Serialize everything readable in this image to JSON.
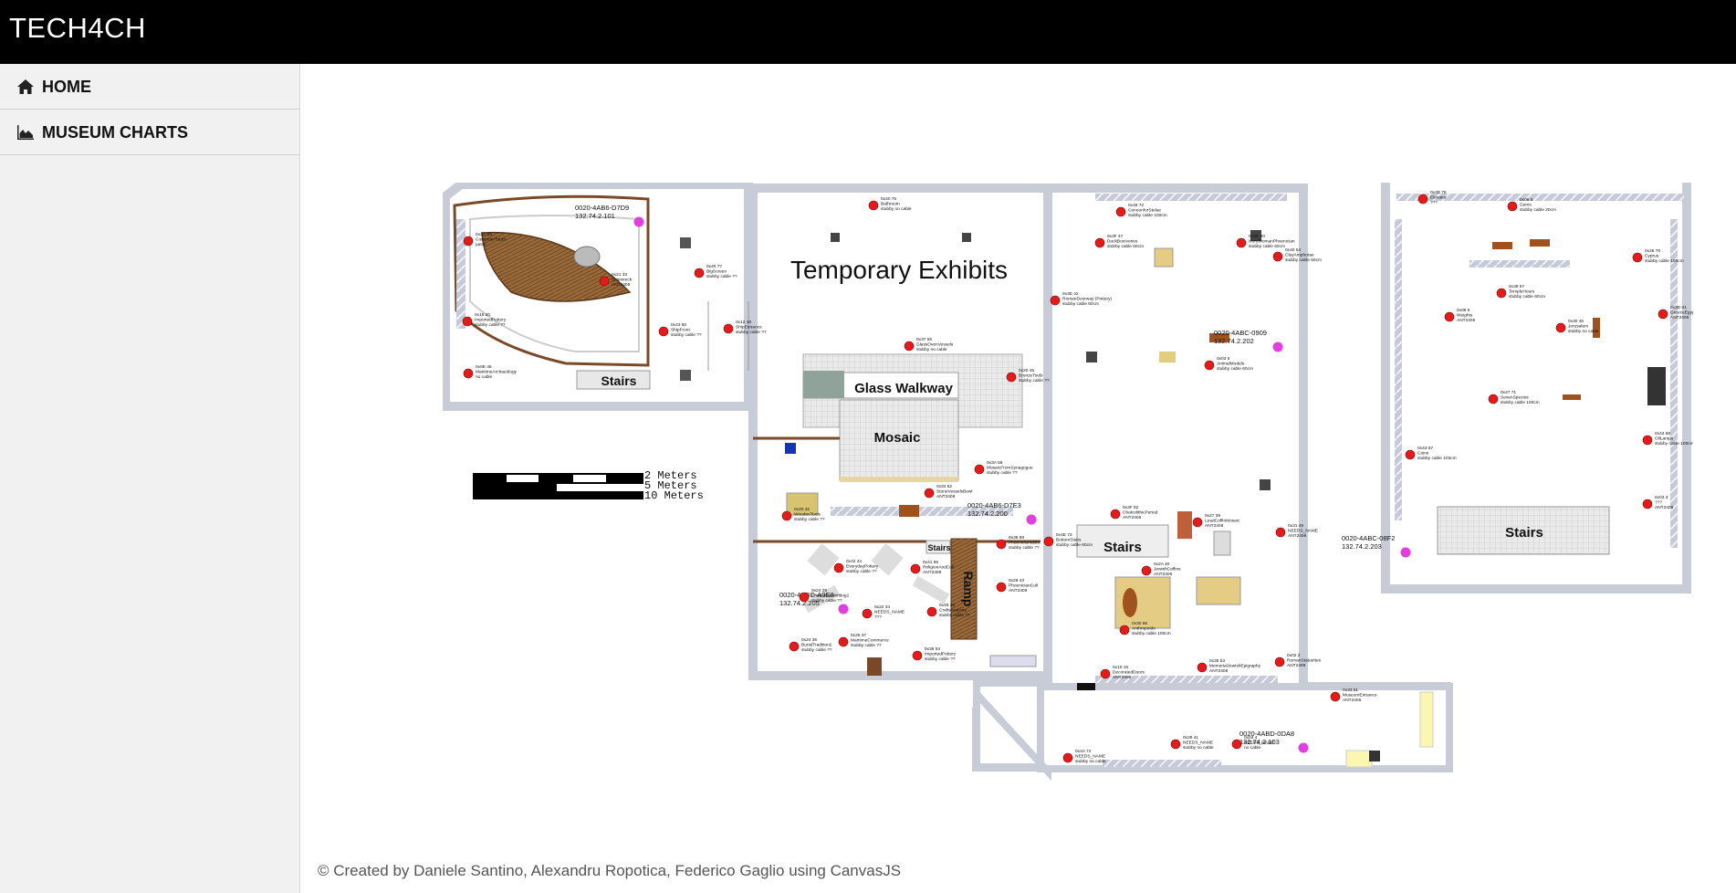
{
  "header": {
    "brand": "TECH4CH"
  },
  "sidebar": {
    "items": [
      {
        "label": "HOME",
        "icon": "home-icon"
      },
      {
        "label": "MUSEUM CHARTS",
        "icon": "area-chart-icon"
      }
    ]
  },
  "map": {
    "room_labels": {
      "temporary_exhibits": "Temporary Exhibits",
      "glass_walkway": "Glass Walkway",
      "mosaic": "Mosaic",
      "stairs_left": "Stairs",
      "stairs_center": "Stairs",
      "stairs_right": "Stairs",
      "stairs_small": "Stairs",
      "ramp": "Ramp"
    },
    "scale": {
      "line1": "2  Meters",
      "line2": "5  Meters",
      "line3": "10 Meters"
    },
    "gateways": [
      {
        "id": "0020-4AB6-D7D9",
        "ip": "132.74.2.101"
      },
      {
        "id": "0020-4ABC-0909",
        "ip": "132.74.2.202"
      },
      {
        "id": "0020-4AB6-D7E3",
        "ip": "132.74.2.200"
      },
      {
        "id": "0020-4ABC-A0E8",
        "ip": "132.74.2.205"
      },
      {
        "id": "0020-4ABD-0DA8",
        "ip": "132.74.2.103"
      },
      {
        "id": "0020-4ABC-08F2",
        "ip": "132.74.2.203"
      }
    ],
    "sensors": [
      {
        "code": "0x2C 16",
        "name": "ComputerTouch",
        "cable": "patch"
      },
      {
        "code": "0x21 33",
        "name": "Shipwreck",
        "cable": "ANT2409"
      },
      {
        "code": "0x15 20",
        "name": "ImportedPottery",
        "cable": "stubby cable ??"
      },
      {
        "code": "0x0E 46",
        "name": "MaritimeArchaeology",
        "cable": "no cable"
      },
      {
        "code": "0x40 77",
        "name": "BigScreen",
        "cable": "stubby cable ??"
      },
      {
        "code": "0x23 50",
        "name": "ShipFront",
        "cable": "stubby cable ??"
      },
      {
        "code": "0x12 18",
        "name": "ShipEntrance",
        "cable": "stubby cable ??"
      },
      {
        "code": "0x40 76",
        "name": "Bathroom",
        "cable": "stubby no cable"
      },
      {
        "code": "0x37 55",
        "name": "GlassOvenVessels",
        "cable": "stubby no cable"
      },
      {
        "code": "0x20 45",
        "name": "BronzeTools",
        "cable": "stubby cable ??"
      },
      {
        "code": "0x3A 58",
        "name": "MosaicFromSynagogue",
        "cable": "stubby cable ??"
      },
      {
        "code": "0x34 52",
        "name": "StoneVesselsBowl",
        "cable": "ANT2409"
      },
      {
        "code": "0x20 32",
        "name": "WoodenTools",
        "cable": "stubby cable ??"
      },
      {
        "code": "0x38 59",
        "name": "PhoenicianIdols",
        "cable": "stubby cable ??"
      },
      {
        "code": "0x42 44",
        "name": "EverydayPottery",
        "cable": "stubby cable ??"
      },
      {
        "code": "0x41 65",
        "name": "ReligionAndCult",
        "cable": "ANT2409"
      },
      {
        "code": "0x24 29",
        "name": "PhoenicianWriting1",
        "cable": "stubby cable ??"
      },
      {
        "code": "0x22 34",
        "name": "NEEDS_NAME",
        "cable": "???"
      },
      {
        "code": "0x26 38",
        "name": "CraftsAndArts",
        "cable": "stubby cable ??"
      },
      {
        "code": "0x28 43",
        "name": "PhoenicianCult",
        "cable": "ANT2409"
      },
      {
        "code": "0x24 36",
        "name": "BurialTradition2",
        "cable": "stubby cable ??"
      },
      {
        "code": "0x25 37",
        "name": "MaritimeCommerce",
        "cable": "stubby cable ??"
      },
      {
        "code": "0x36 54",
        "name": "ImportedPottery",
        "cable": "stubby cable ??"
      },
      {
        "code": "0x48 72",
        "name": "CenoonforStelae",
        "cable": "stubby cable 100cm"
      },
      {
        "code": "0x3C 80",
        "name": "IvoryWomanPhoenician",
        "cable": "stubby cable 60cm"
      },
      {
        "code": "0x3F 47",
        "name": "DuckBoxIvories",
        "cable": "stubby cable 60cm"
      },
      {
        "code": "0x40 64",
        "name": "ClayAmphorae",
        "cable": "stubby cable 60cm"
      },
      {
        "code": "0x3E 42",
        "name": "RomanDoorway (Pottery)",
        "cable": "stubby cable 60cm"
      },
      {
        "code": "0x03 5",
        "name": "AnimalModels",
        "cable": "stubby cable 60cm"
      },
      {
        "code": "0x3F 62",
        "name": "ChalcolithicPeriod",
        "cable": "ANT2406"
      },
      {
        "code": "0x27 39",
        "name": "LeadCoffinMosaic",
        "cable": "ANT2406"
      },
      {
        "code": "0x31 49",
        "name": "NEEDS_NAME",
        "cable": "ANT2406"
      },
      {
        "code": "0x4E 73",
        "name": "BottomStairs",
        "cable": "stubby cable 60cm"
      },
      {
        "code": "0x2A 40",
        "name": "JewishCoffins",
        "cable": "ANT2406"
      },
      {
        "code": "0x30 56",
        "name": "Anthropoids",
        "cable": "stubby cable 100cm"
      },
      {
        "code": "0x10 16",
        "name": "DecoratedDoors",
        "cable": "ANT2406"
      },
      {
        "code": "0x35 53",
        "name": "MemorialJewishEpigraphy",
        "cable": "ANT2406"
      },
      {
        "code": "0x02 2",
        "name": "RomanStatuettes",
        "cable": "ANT2409"
      },
      {
        "code": "0x33 51",
        "name": "MuseumEntrance",
        "cable": "ANT2406"
      },
      {
        "code": "0x4A 74",
        "name": "NEEDS_NAME",
        "cable": "stubby no cable"
      },
      {
        "code": "0x29 41",
        "name": "NEEDS_NAME",
        "cable": "stubby no cable"
      },
      {
        "code": "0x04 4",
        "name": "NEEDS_NAME",
        "cable": "no cable"
      },
      {
        "code": "0x4B 76",
        "name": "Elevator",
        "cable": "???"
      },
      {
        "code": "0x06 6",
        "name": "Gems",
        "cable": "stubby cable 20cm"
      },
      {
        "code": "0x46 70",
        "name": "Cyprus",
        "cable": "stubby cable 100cm"
      },
      {
        "code": "0x39 57",
        "name": "TempleHours",
        "cable": "stubby cable 60cm"
      },
      {
        "code": "0x08 8",
        "name": "Weights",
        "cable": "ANT2406"
      },
      {
        "code": "0x30 46",
        "name": "Jerusalem",
        "cable": "stubby no cable"
      },
      {
        "code": "0x3D 61",
        "name": "GreeceEgypt",
        "cable": "ANT2406"
      },
      {
        "code": "0x47 71",
        "name": "SevenSpecies",
        "cable": "stubby cable 100cm"
      },
      {
        "code": "0x44 68",
        "name": "OilLamps",
        "cable": "stubby cable 100cm"
      },
      {
        "code": "0x43 67",
        "name": "Coins",
        "cable": "stubby cable 100cm"
      },
      {
        "code": "0x03 3",
        "name": "???",
        "cable": "ANT2406"
      }
    ]
  },
  "footer": {
    "text": "© Created by Daniele Santino, Alexandru Ropotica, Federico Gaglio using CanvasJS"
  }
}
